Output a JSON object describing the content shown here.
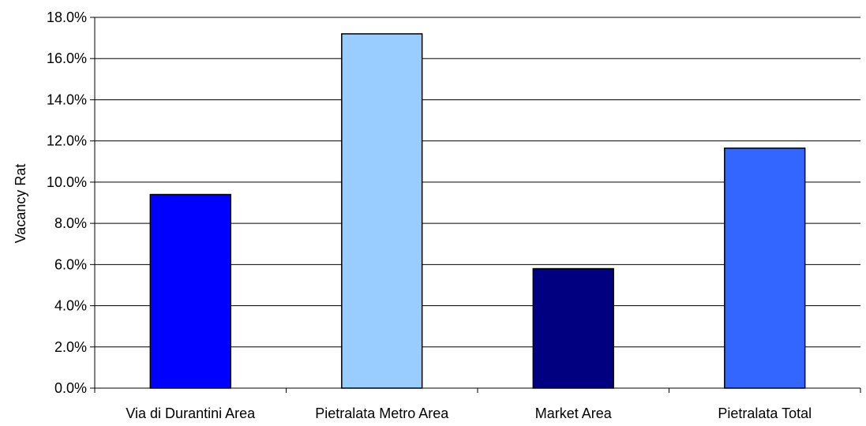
{
  "chart_data": {
    "type": "bar",
    "title": "",
    "xlabel": "",
    "ylabel": "Vacancy Rat",
    "categories": [
      "Via di Durantini Area",
      "Pietralata Metro Area",
      "Market Area",
      "Pietralata Total"
    ],
    "values": [
      0.094,
      0.172,
      0.058,
      0.1165
    ],
    "colors": [
      "#0000FF",
      "#99CCFF",
      "#000080",
      "#3366FF"
    ],
    "ylim": [
      0,
      0.18
    ],
    "yticks": [
      0,
      0.02,
      0.04,
      0.06,
      0.08,
      0.1,
      0.12,
      0.14,
      0.16,
      0.18
    ],
    "ytick_labels": [
      "0.0%",
      "2.0%",
      "4.0%",
      "6.0%",
      "8.0%",
      "10.0%",
      "12.0%",
      "14.0%",
      "16.0%",
      "18.0%"
    ],
    "grid": true,
    "legend": "none"
  }
}
